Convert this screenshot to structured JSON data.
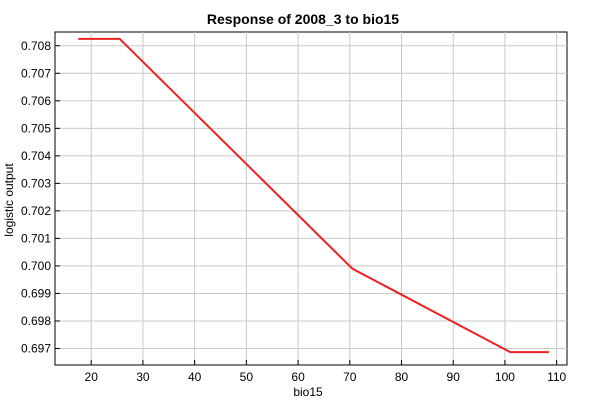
{
  "chart_data": {
    "type": "line",
    "title": "Response of 2008_3 to bio15",
    "xlabel": "bio15",
    "ylabel": "logistic output",
    "xlim": [
      13,
      112
    ],
    "ylim": [
      0.6964,
      0.7085
    ],
    "xticks": [
      20,
      30,
      40,
      50,
      60,
      70,
      80,
      90,
      100,
      110
    ],
    "yticks": [
      0.697,
      0.698,
      0.699,
      0.7,
      0.701,
      0.702,
      0.703,
      0.704,
      0.705,
      0.706,
      0.707,
      0.708
    ],
    "ytick_labels": [
      "0.697",
      "0.698",
      "0.699",
      "0.700",
      "0.701",
      "0.702",
      "0.703",
      "0.704",
      "0.705",
      "0.706",
      "0.707",
      "0.708"
    ],
    "grid": true,
    "series": [
      {
        "color": "#ee2222",
        "x": [
          17.5,
          25.5,
          70.5,
          101,
          108.5
        ],
        "y": [
          0.70825,
          0.70825,
          0.6999,
          0.69687,
          0.69687
        ]
      }
    ]
  }
}
